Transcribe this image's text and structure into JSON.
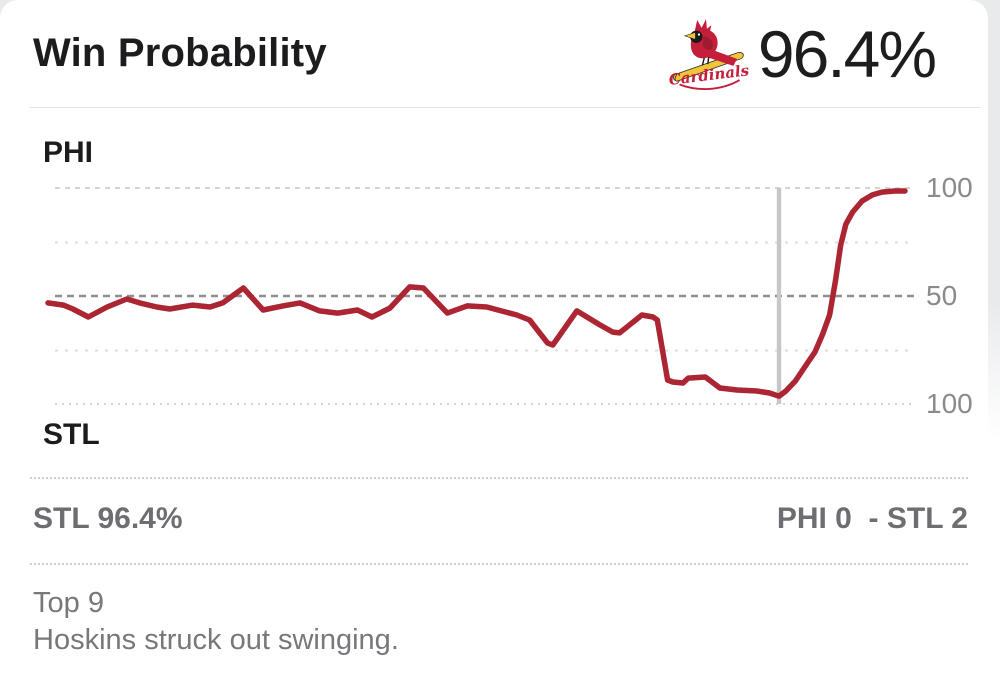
{
  "header": {
    "title": "Win Probability",
    "win_pct": "96.4%",
    "logo_text": "Cardinals",
    "team": "St. Louis Cardinals"
  },
  "chart": {
    "top_team_label": "PHI",
    "bottom_team_label": "STL",
    "y_axis_labels": {
      "top": "100",
      "mid": "50",
      "bottom": "100"
    }
  },
  "status": {
    "win_prob_text": "STL 96.4%",
    "score_text": "PHI 0  - STL 2"
  },
  "play": {
    "inning": "Top 9",
    "description": "Hoskins struck out swinging."
  },
  "colors": {
    "line": "#ab2533",
    "cardinal_red": "#c41e3a",
    "bat_yellow": "#f0c53a",
    "marker": "#c7c7c9"
  },
  "chart_data": {
    "type": "line",
    "title": "Win Probability",
    "teams": {
      "top": "PHI",
      "bottom": "STL"
    },
    "y_axis": {
      "top_label": "100",
      "mid_label": "50",
      "bottom_label": "100",
      "gridlines_pct": [
        100,
        75,
        50,
        25,
        0
      ],
      "description": "Win probability %: line toward top = PHI favored, toward bottom = STL favored"
    },
    "x_axis": {
      "description": "Game progress (play sequence)",
      "range": [
        0,
        1
      ]
    },
    "marker": {
      "x_fraction": 0.853,
      "stl_win_pct": 96.4,
      "label": "Selected play: Top 9 - Hoskins struck out swinging."
    },
    "legend": false,
    "grid": true,
    "series": [
      {
        "name": "PHI win probability (%)",
        "color": "#ab2533",
        "points": [
          [
            0.0,
            46.8
          ],
          [
            0.018,
            45.8
          ],
          [
            0.029,
            44.0
          ],
          [
            0.047,
            40.3
          ],
          [
            0.069,
            44.9
          ],
          [
            0.092,
            48.6
          ],
          [
            0.107,
            46.8
          ],
          [
            0.127,
            44.9
          ],
          [
            0.142,
            44.0
          ],
          [
            0.169,
            45.8
          ],
          [
            0.189,
            44.9
          ],
          [
            0.204,
            46.8
          ],
          [
            0.228,
            53.7
          ],
          [
            0.251,
            43.5
          ],
          [
            0.274,
            45.4
          ],
          [
            0.294,
            46.8
          ],
          [
            0.317,
            43.1
          ],
          [
            0.338,
            42.1
          ],
          [
            0.361,
            43.5
          ],
          [
            0.378,
            40.3
          ],
          [
            0.399,
            44.4
          ],
          [
            0.422,
            54.2
          ],
          [
            0.438,
            53.7
          ],
          [
            0.466,
            42.1
          ],
          [
            0.489,
            45.4
          ],
          [
            0.512,
            44.9
          ],
          [
            0.547,
            41.2
          ],
          [
            0.562,
            38.9
          ],
          [
            0.583,
            28.2
          ],
          [
            0.589,
            27.3
          ],
          [
            0.617,
            43.1
          ],
          [
            0.644,
            36.6
          ],
          [
            0.659,
            33.3
          ],
          [
            0.667,
            32.9
          ],
          [
            0.693,
            41.2
          ],
          [
            0.706,
            40.3
          ],
          [
            0.711,
            38.9
          ],
          [
            0.723,
            11.1
          ],
          [
            0.729,
            10.2
          ],
          [
            0.741,
            9.7
          ],
          [
            0.747,
            12.0
          ],
          [
            0.767,
            12.5
          ],
          [
            0.784,
            7.4
          ],
          [
            0.804,
            6.5
          ],
          [
            0.827,
            6.0
          ],
          [
            0.842,
            5.1
          ],
          [
            0.853,
            3.6
          ],
          [
            0.861,
            6.0
          ],
          [
            0.872,
            10.6
          ],
          [
            0.883,
            17.1
          ],
          [
            0.895,
            24.1
          ],
          [
            0.904,
            32.4
          ],
          [
            0.912,
            41.2
          ],
          [
            0.919,
            57.4
          ],
          [
            0.925,
            73.6
          ],
          [
            0.931,
            83.3
          ],
          [
            0.939,
            88.9
          ],
          [
            0.95,
            94.0
          ],
          [
            0.962,
            96.8
          ],
          [
            0.973,
            98.1
          ],
          [
            0.988,
            98.6
          ],
          [
            1.0,
            98.6
          ]
        ]
      }
    ]
  }
}
